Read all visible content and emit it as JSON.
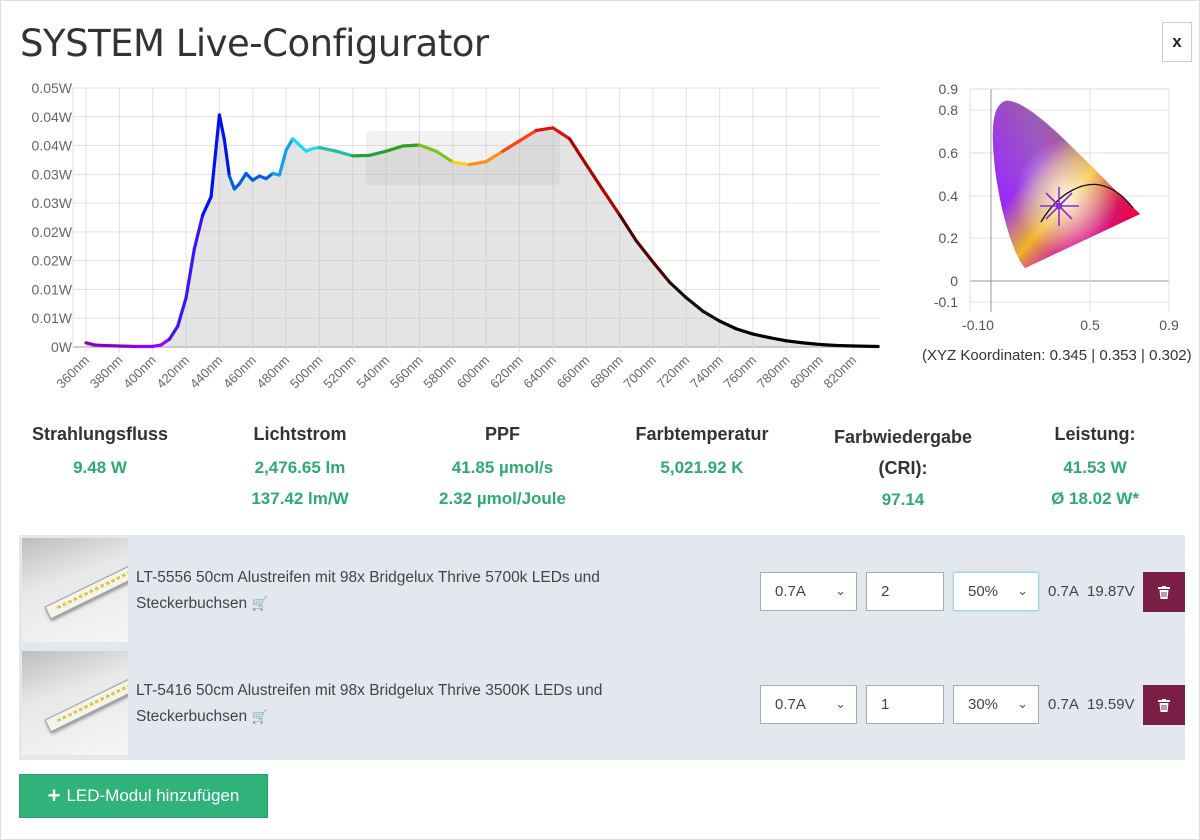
{
  "title": "SYSTEM Live-Configurator",
  "close_label": "x",
  "chart_data": {
    "type": "area",
    "title": "",
    "xlabel": "",
    "ylabel": "",
    "x_ticks": [
      "360nm",
      "380nm",
      "400nm",
      "420nm",
      "440nm",
      "460nm",
      "480nm",
      "500nm",
      "520nm",
      "540nm",
      "560nm",
      "580nm",
      "600nm",
      "620nm",
      "640nm",
      "660nm",
      "680nm",
      "700nm",
      "720nm",
      "740nm",
      "760nm",
      "780nm",
      "800nm",
      "820nm"
    ],
    "y_ticks": [
      "0W",
      "0.01W",
      "0.01W",
      "0.02W",
      "0.02W",
      "0.03W",
      "0.03W",
      "0.04W",
      "0.04W",
      "0.05W"
    ],
    "xlim": [
      352,
      836
    ],
    "ylim": [
      0,
      0.05
    ],
    "grid": true,
    "series": [
      {
        "name": "spectrum",
        "x": [
          360,
          365,
          370,
          380,
          390,
          400,
          405,
          410,
          415,
          420,
          425,
          430,
          435,
          440,
          443,
          446,
          449,
          452,
          456,
          460,
          464,
          468,
          472,
          476,
          480,
          484,
          488,
          492,
          496,
          500,
          510,
          520,
          530,
          540,
          550,
          560,
          570,
          580,
          590,
          600,
          610,
          620,
          630,
          640,
          650,
          660,
          670,
          680,
          690,
          700,
          710,
          720,
          730,
          740,
          750,
          760,
          770,
          780,
          790,
          800,
          810,
          820,
          835
        ],
        "y": [
          0.0008,
          0.0004,
          0.0003,
          0.0002,
          0.0001,
          0.0001,
          0.0004,
          0.0015,
          0.004,
          0.0095,
          0.019,
          0.0255,
          0.029,
          0.0448,
          0.04,
          0.033,
          0.0305,
          0.0315,
          0.0335,
          0.0322,
          0.033,
          0.0325,
          0.0335,
          0.0332,
          0.038,
          0.0402,
          0.039,
          0.0378,
          0.0383,
          0.0385,
          0.0378,
          0.0369,
          0.037,
          0.0378,
          0.0388,
          0.039,
          0.0378,
          0.0357,
          0.0352,
          0.0358,
          0.0378,
          0.0398,
          0.0418,
          0.0423,
          0.0402,
          0.0352,
          0.0303,
          0.0255,
          0.0205,
          0.0164,
          0.0125,
          0.0095,
          0.0069,
          0.005,
          0.0035,
          0.0025,
          0.0018,
          0.0012,
          0.0008,
          0.0005,
          0.0003,
          0.0002,
          0.0001
        ]
      }
    ]
  },
  "cie": {
    "x_ticks": [
      "-0.10",
      "0.5",
      "0.9"
    ],
    "y_ticks": [
      "0.9",
      "0.8",
      "0.6",
      "0.4",
      "0.2",
      "0",
      "-0.1"
    ],
    "point": [
      0.345,
      0.353
    ],
    "coords_text": "(XYZ Koordinaten: 0.345 | 0.353 | 0.302)"
  },
  "stats": [
    {
      "label": "Strahlungsfluss",
      "values": [
        "9.48 W"
      ]
    },
    {
      "label": "Lichtstrom",
      "values": [
        "2,476.65 lm",
        "137.42 lm/W"
      ]
    },
    {
      "label": "PPF",
      "values": [
        "41.85 µmol/s",
        "2.32 µmol/Joule"
      ]
    },
    {
      "label": "Farbtemperatur",
      "values": [
        "5,021.92 K"
      ]
    },
    {
      "label": "Farbwiedergabe (CRI):",
      "values": [
        "97.14"
      ]
    },
    {
      "label": "Leistung:",
      "values": [
        "41.53 W",
        "Ø 18.02 W*"
      ]
    }
  ],
  "modules": [
    {
      "line1": "LT-5556 50cm Alustreifen mit 98x Bridgelux Thrive 5700k LEDs und",
      "line2": "Steckerbuchsen",
      "current": "0.7A",
      "count": "2",
      "dim": "50%",
      "amps": "0.7A",
      "volts": "19.87V"
    },
    {
      "line1": "LT-5416 50cm Alustreifen mit 98x Bridgelux Thrive 3500K LEDs und",
      "line2": "Steckerbuchsen",
      "current": "0.7A",
      "count": "1",
      "dim": "30%",
      "amps": "0.7A",
      "volts": "19.59V"
    }
  ],
  "add_button": "LED-Modul hinzufügen",
  "colors": {
    "accent": "#2eaa72",
    "delete": "#7b1e45",
    "panel": "#e3e7ee"
  }
}
